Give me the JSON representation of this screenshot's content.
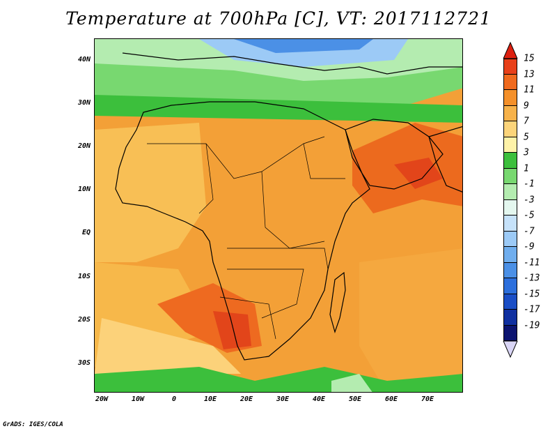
{
  "title": "Temperature at 700hPa [C], VT: 2017112721",
  "credit": "GrADS: IGES/COLA",
  "lat_labels": [
    "40N",
    "30N",
    "20N",
    "10N",
    "EQ",
    "10S",
    "20S",
    "30S"
  ],
  "lon_labels": [
    "20W",
    "10W",
    "0",
    "10E",
    "20E",
    "30E",
    "40E",
    "50E",
    "60E",
    "70E"
  ],
  "colorbar": {
    "labels": [
      "15",
      "13",
      "11",
      "9",
      "7",
      "5",
      "3",
      "1",
      "-1",
      "-3",
      "-5",
      "-7",
      "-9",
      "-11",
      "-13",
      "-15",
      "-17",
      "-19"
    ],
    "colors": [
      "#e8401a",
      "#f06a1e",
      "#f4902a",
      "#f7b24a",
      "#fcd47a",
      "#fef2a8",
      "#3cbf3c",
      "#78d870",
      "#b4ecb0",
      "#e4f7ef",
      "#c6e2fa",
      "#9ccaf6",
      "#70aeee",
      "#4b90e6",
      "#2c6fdc",
      "#1a4ec6",
      "#1030a0",
      "#0c1470"
    ],
    "top_arrow_color": "#dd2010",
    "bottom_arrow_color": "#d9d5f5"
  }
}
